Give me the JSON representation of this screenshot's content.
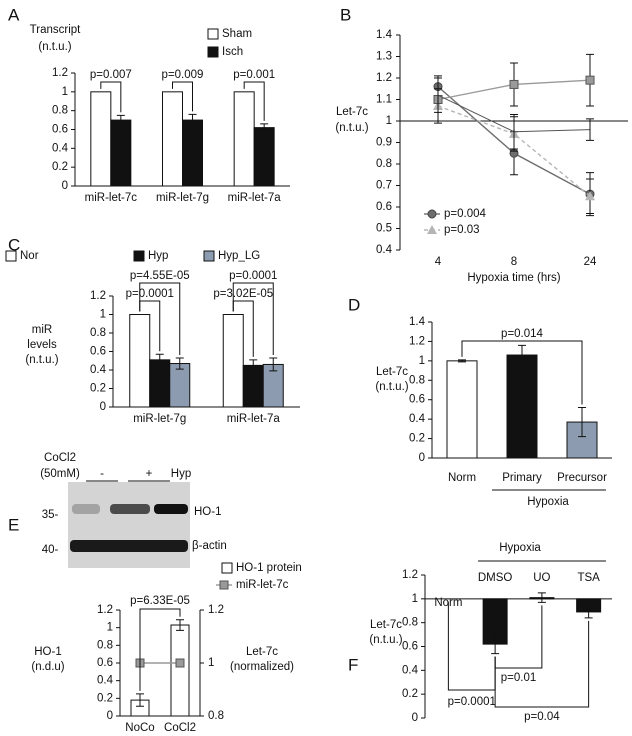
{
  "chart_data": [
    {
      "panel": "A",
      "type": "bar",
      "y_label": [
        "Transcript",
        "(n.t.u.)"
      ],
      "categories": [
        "miR-let-7c",
        "miR-let-7g",
        "miR-let-7a"
      ],
      "series": [
        {
          "name": "Sham",
          "color": "#ffffff",
          "values": [
            1,
            1,
            1
          ]
        },
        {
          "name": "Isch",
          "color": "#111111",
          "values": [
            0.7,
            0.7,
            0.62
          ],
          "errors": [
            0.05,
            0.06,
            0.04
          ]
        }
      ],
      "ylim": [
        0,
        1.2
      ],
      "yticks": [
        0,
        0.2,
        0.4,
        0.6,
        0.8,
        1,
        1.2
      ],
      "annotations": [
        "p=0.007",
        "p=0.009",
        "p=0.001"
      ]
    },
    {
      "panel": "B",
      "type": "line",
      "y_label": [
        "Let-7c",
        "(n.t.u.)"
      ],
      "x_label": "Hypoxia time (hrs)",
      "categories": [
        "4",
        "8",
        "24"
      ],
      "series": [
        {
          "name": "p=0.004",
          "color": "#6e6e6e",
          "marker": "circle",
          "values": [
            1.16,
            0.85,
            0.66
          ],
          "errors": [
            0.05,
            0.1,
            0.1
          ]
        },
        {
          "name": "p=0.03",
          "color": "#b5b5b5",
          "marker": "triangle",
          "dash": true,
          "values": [
            1.07,
            0.94,
            0.65
          ],
          "errors": [
            0.08,
            0.08,
            0.08
          ]
        },
        {
          "color": "#9a9a9a",
          "marker": "square",
          "values": [
            1.1,
            1.17,
            1.19
          ],
          "errors": [
            0.1,
            0.1,
            0.12
          ]
        },
        {
          "color": "#555555",
          "values": [
            1.12,
            0.95,
            0.96
          ],
          "errors": [
            0.08,
            0.08,
            0.05
          ]
        }
      ],
      "ylim": [
        0.4,
        1.4
      ],
      "yticks": [
        0.4,
        0.5,
        0.6,
        0.7,
        0.8,
        0.9,
        1,
        1.1,
        1.2,
        1.3,
        1.4
      ],
      "baseline": 1
    },
    {
      "panel": "C",
      "type": "bar",
      "y_label": [
        "miR",
        "levels",
        "(n.t.u.)"
      ],
      "categories": [
        "miR-let-7g",
        "miR-let-7a"
      ],
      "series": [
        {
          "name": "Nor",
          "color": "#ffffff",
          "values": [
            1,
            1
          ]
        },
        {
          "name": "Hyp",
          "color": "#111111",
          "values": [
            0.51,
            0.45
          ],
          "errors": [
            0.06,
            0.06
          ]
        },
        {
          "name": "Hyp_LG",
          "color": "#8c9bb0",
          "values": [
            0.47,
            0.46
          ],
          "errors": [
            0.06,
            0.07
          ]
        }
      ],
      "ylim": [
        0,
        1.2
      ],
      "yticks": [
        0,
        0.2,
        0.4,
        0.6,
        0.8,
        1,
        1.2
      ],
      "annotations": [
        "p=4.55E-05",
        "p=0.0001",
        "p=0.0001",
        "p=3.02E-05"
      ]
    },
    {
      "panel": "D",
      "type": "bar",
      "y_label": [
        "Let-7c",
        "(n.t.u.)"
      ],
      "categories": [
        "Norm",
        "Primary",
        "Precursor"
      ],
      "values": [
        1,
        1.06,
        0.37
      ],
      "errors": [
        0.01,
        0.1,
        0.15
      ],
      "colors": [
        "#ffffff",
        "#111111",
        "#8c9bb0"
      ],
      "ylim": [
        0,
        1.4
      ],
      "yticks": [
        0,
        0.2,
        0.4,
        0.6,
        0.8,
        1,
        1.2,
        1.4
      ],
      "group_label": "Hypoxia",
      "annotations": [
        "p=0.014"
      ]
    },
    {
      "panel": "E",
      "type": "bar",
      "y_label": [
        "HO-1",
        "(n.d.u)"
      ],
      "y2_label": [
        "Let-7c",
        "(normalized)"
      ],
      "blot": {
        "treatment": [
          "CoCl2",
          "(50mM)"
        ],
        "lanes": [
          "-",
          "+",
          "Hyp"
        ],
        "markers": [
          "35-",
          "40-"
        ],
        "bands": [
          "HO-1",
          "β-actin"
        ]
      },
      "categories": [
        "NoCo",
        "CoCl2"
      ],
      "series": [
        {
          "name": "HO-1 protein",
          "color": "#ffffff",
          "values": [
            0.18,
            1.03
          ],
          "errors": [
            0.07,
            0.06
          ]
        },
        {
          "name": "miR-let-7c",
          "type": "line",
          "axis": "y2",
          "color": "#999999",
          "marker": "square",
          "values": [
            1,
            1
          ]
        }
      ],
      "ylim": [
        0,
        1.2
      ],
      "yticks": [
        0,
        0.2,
        0.4,
        0.6,
        0.8,
        1,
        1.2
      ],
      "y2lim": [
        0.8,
        1.2
      ],
      "y2ticks": [
        0.8,
        1,
        1.2
      ],
      "annotations": [
        "p=6.33E-05"
      ]
    },
    {
      "panel": "F",
      "type": "bar",
      "y_label": [
        "Let-7c",
        "(n.t.u.)"
      ],
      "categories": [
        "Norm",
        "DMSO",
        "UO",
        "TSA"
      ],
      "values": [
        1,
        0.62,
        1.01,
        0.89
      ],
      "errors": [
        null,
        0.08,
        0.04,
        0.05
      ],
      "color": "#111111",
      "ylim": [
        0,
        1.2
      ],
      "yticks": [
        0,
        0.2,
        0.4,
        0.6,
        0.8,
        1,
        1.2
      ],
      "baseline": 1,
      "group_label": "Hypoxia",
      "annotations": [
        "p=0.0001",
        "p=0.01",
        "p=0.04"
      ]
    }
  ]
}
